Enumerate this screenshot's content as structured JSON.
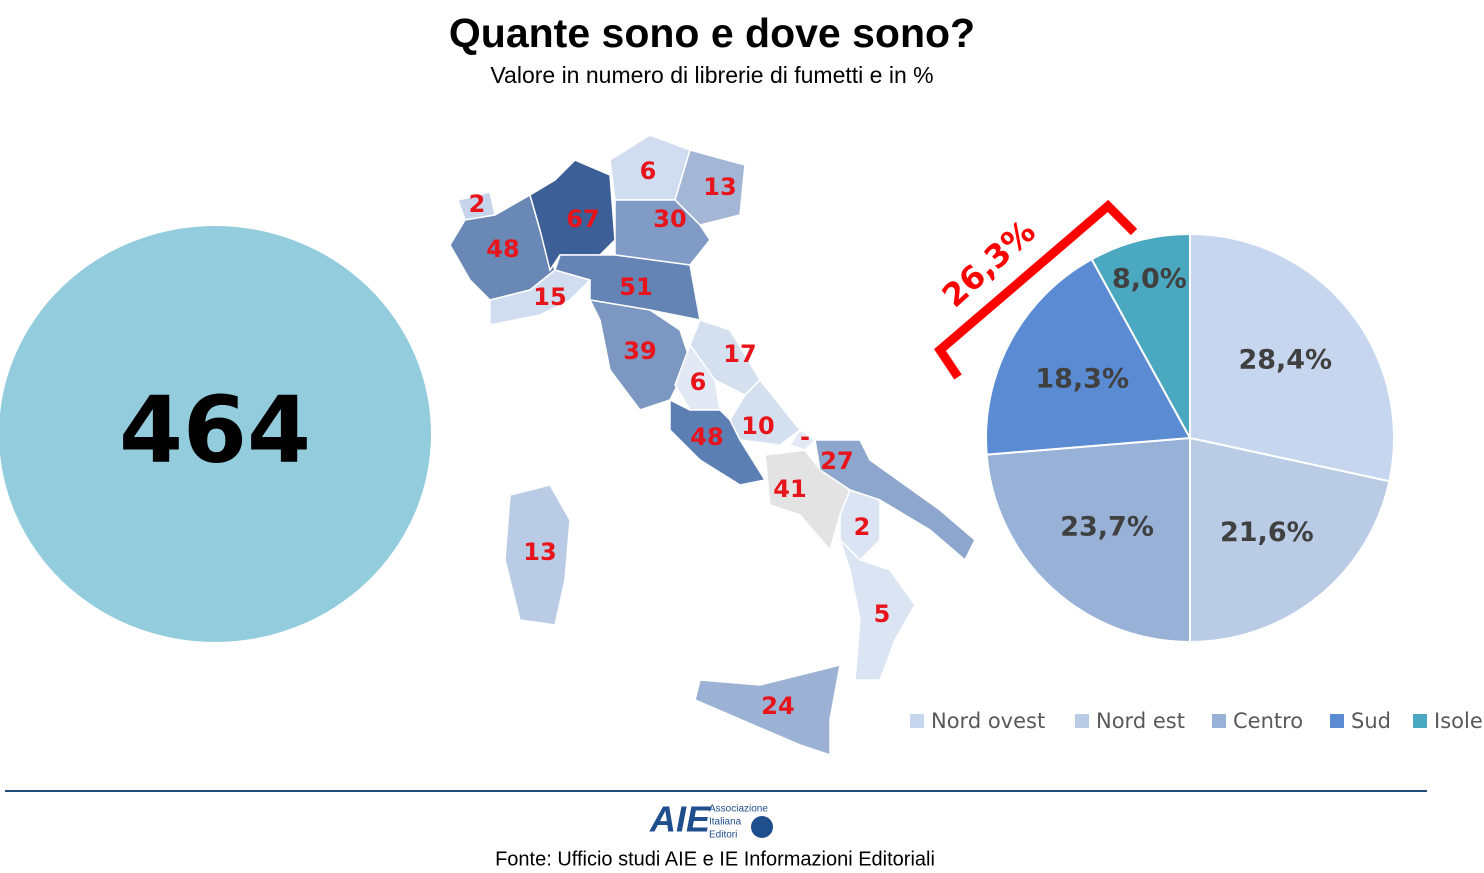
{
  "header": {
    "title": "Quante sono e dove sono?",
    "subtitle": "Valore in numero di librerie di fumetti e in %"
  },
  "total": {
    "value": 464,
    "color": "#93cddd"
  },
  "map": {
    "values": [
      2,
      48,
      67,
      6,
      13,
      30,
      15,
      51,
      39,
      17,
      6,
      10,
      "-",
      48,
      27,
      41,
      2,
      5,
      24,
      13
    ],
    "colors": [
      "#c6d5ec",
      "#6a88b6",
      "#3b5f96",
      "#d0dcef",
      "#a3b6d6",
      "#7f9bc6",
      "#d0dcef",
      "#6384b5",
      "#7c97c1",
      "#d4dfef",
      "#e2e9f4",
      "#d4dfef",
      "#e2e9f4",
      "#5b7eb3",
      "#8da6cd",
      "#e3e3e3",
      "#dbe4f2",
      "#dbe4f2",
      "#9cb2d4",
      "#b9cbe5"
    ],
    "label_color": "#e8141b"
  },
  "chart_data": {
    "type": "pie",
    "categories": [
      "Nord ovest",
      "Nord est",
      "Centro",
      "Sud",
      "Isole"
    ],
    "values": [
      28.4,
      21.6,
      23.7,
      18.3,
      8.0
    ],
    "value_labels": [
      "28,4%",
      "21,6%",
      "23,7%",
      "18,3%",
      "8,0%"
    ],
    "colors": [
      "#c6d6ee",
      "#b9cbe5",
      "#98b1d7",
      "#5a8bd3",
      "#4aa8c0"
    ],
    "annotation": {
      "value": 26.3,
      "label": "26,3%"
    },
    "legend": "bottom"
  },
  "footer": {
    "logo": {
      "mark": "AIE",
      "lines": [
        "Associazione",
        "Italiana",
        "Editori"
      ]
    },
    "source": "Fonte: Ufficio studi AIE e IE Informazioni Editoriali"
  }
}
